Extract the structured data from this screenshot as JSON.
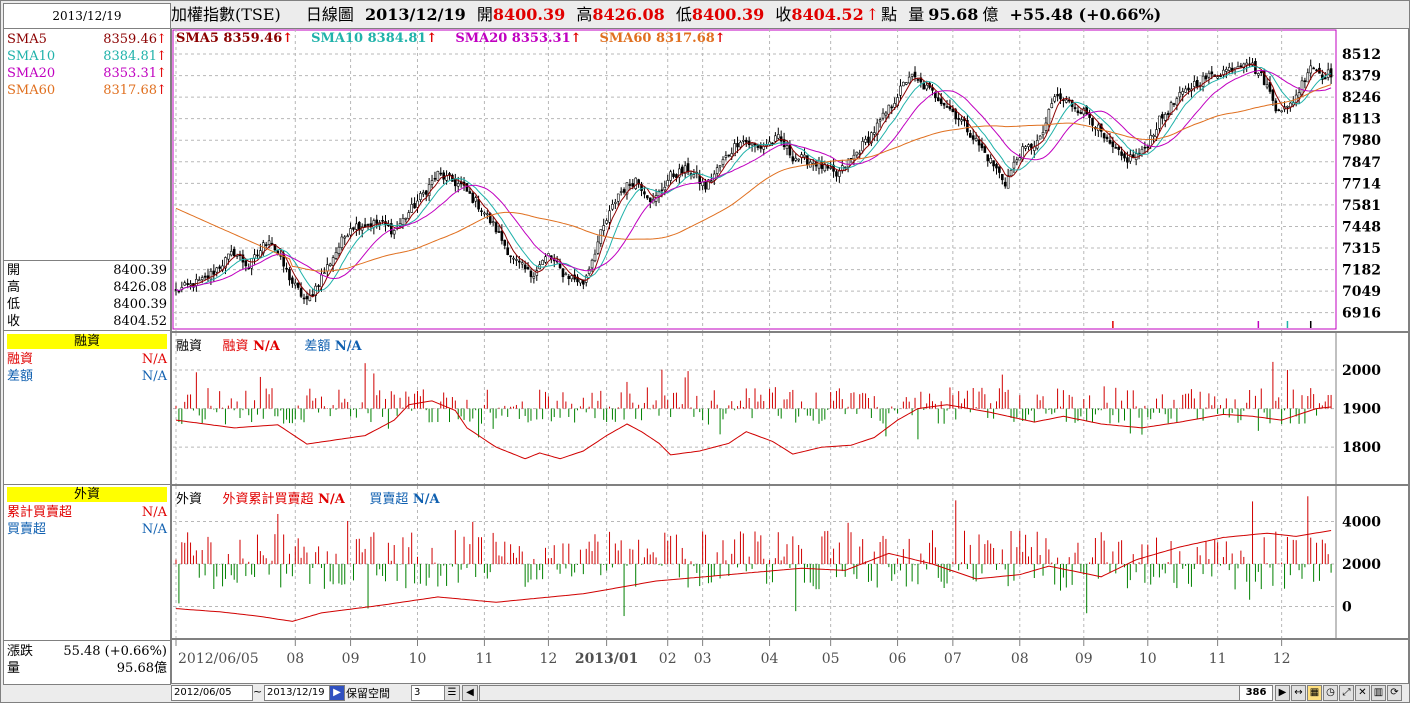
{
  "left_panel": {
    "date": "2013/12/19",
    "sma_rows": [
      {
        "label": "SMA5",
        "value": "8359.46",
        "color": "#8b0000"
      },
      {
        "label": "SMA10",
        "value": "8384.81",
        "color": "#20b2aa"
      },
      {
        "label": "SMA20",
        "value": "8353.31",
        "color": "#c000c0"
      },
      {
        "label": "SMA60",
        "value": "8317.68",
        "color": "#e07020"
      }
    ],
    "ohlc": [
      {
        "label": "開",
        "value": "8400.39"
      },
      {
        "label": "高",
        "value": "8426.08"
      },
      {
        "label": "低",
        "value": "8400.39"
      },
      {
        "label": "收",
        "value": "8404.52"
      }
    ],
    "margin_title": "融資",
    "margin_rows": [
      {
        "label": "融資",
        "value": "N/A",
        "color": "#e00000"
      },
      {
        "label": "差額",
        "value": "N/A",
        "color": "#1060b0"
      }
    ],
    "foreign_title": "外資",
    "foreign_rows": [
      {
        "label": "累計買賣超",
        "value": "N/A",
        "color": "#e00000"
      },
      {
        "label": "買賣超",
        "value": "N/A",
        "color": "#1060b0"
      }
    ],
    "change_label": "漲跌",
    "change_value": "55.48 (+0.66%)",
    "volume_label": "量",
    "volume_value": "95.68億"
  },
  "header": {
    "index_name": "加權指數(TSE)",
    "chart_kind": "日線圖",
    "date": "2013/12/19",
    "open_label": "開",
    "open": "8400.39",
    "high_label": "高",
    "high": "8426.08",
    "low_label": "低",
    "low": "8400.39",
    "close_label": "收",
    "close": "8404.52",
    "point_label": "點",
    "volume_label": "量",
    "volume": "95.68",
    "volume_unit": "億",
    "change": "+55.48 (+0.66%)"
  },
  "price_legend": [
    {
      "label": "SMA5",
      "value": "8359.46",
      "color": "#8b0000"
    },
    {
      "label": "SMA10",
      "value": "8384.81",
      "color": "#20b2aa"
    },
    {
      "label": "SMA20",
      "value": "8353.31",
      "color": "#c000c0"
    },
    {
      "label": "SMA60",
      "value": "8317.68",
      "color": "#e07020"
    }
  ],
  "margin_legend": {
    "title": "融資",
    "a_label": "融資",
    "a_value": "N/A",
    "b_label": "差額",
    "b_value": "N/A"
  },
  "foreign_legend": {
    "title": "外資",
    "a_label": "外資累計買賣超",
    "a_value": "N/A",
    "b_label": "買賣超",
    "b_value": "N/A"
  },
  "toolbar": {
    "start_date": "2012/06/05",
    "tilde": "~",
    "end_date": "2013/12/19",
    "reserve_label": "保留空間",
    "reserve_value": "3",
    "bar_count": "386"
  },
  "chart_data": [
    {
      "type": "candlestick",
      "name": "price",
      "y_ticks": [
        8512,
        8379,
        8246,
        8113,
        7980,
        7847,
        7714,
        7581,
        7448,
        7315,
        7182,
        7049,
        6916
      ],
      "ylim": [
        6840,
        8580
      ],
      "x_labels": [
        "2012/06/05",
        "08",
        "09",
        "10",
        "11",
        "12",
        "2013/01",
        "02",
        "03",
        "04",
        "05",
        "06",
        "07",
        "08",
        "09",
        "10",
        "11",
        "12"
      ],
      "x_label_positions": [
        0,
        41,
        60,
        83,
        106,
        128,
        148,
        169,
        181,
        204,
        225,
        248,
        267,
        290,
        312,
        334,
        358,
        380
      ],
      "bar_count": 386,
      "close_anchors": [
        [
          0,
          7050
        ],
        [
          10,
          7120
        ],
        [
          20,
          7290
        ],
        [
          25,
          7200
        ],
        [
          32,
          7380
        ],
        [
          40,
          7100
        ],
        [
          45,
          6980
        ],
        [
          52,
          7200
        ],
        [
          60,
          7450
        ],
        [
          70,
          7470
        ],
        [
          75,
          7420
        ],
        [
          82,
          7580
        ],
        [
          90,
          7770
        ],
        [
          98,
          7700
        ],
        [
          105,
          7560
        ],
        [
          110,
          7430
        ],
        [
          116,
          7240
        ],
        [
          122,
          7150
        ],
        [
          128,
          7270
        ],
        [
          133,
          7160
        ],
        [
          140,
          7100
        ],
        [
          146,
          7400
        ],
        [
          152,
          7650
        ],
        [
          158,
          7740
        ],
        [
          164,
          7600
        ],
        [
          170,
          7760
        ],
        [
          176,
          7800
        ],
        [
          182,
          7690
        ],
        [
          188,
          7850
        ],
        [
          194,
          7990
        ],
        [
          200,
          7930
        ],
        [
          207,
          7990
        ],
        [
          212,
          7880
        ],
        [
          220,
          7840
        ],
        [
          227,
          7760
        ],
        [
          233,
          7880
        ],
        [
          240,
          8040
        ],
        [
          246,
          8200
        ],
        [
          252,
          8380
        ],
        [
          258,
          8300
        ],
        [
          263,
          8230
        ],
        [
          270,
          8100
        ],
        [
          276,
          7950
        ],
        [
          282,
          7800
        ],
        [
          285,
          7720
        ],
        [
          290,
          7900
        ],
        [
          297,
          7980
        ],
        [
          302,
          8250
        ],
        [
          308,
          8200
        ],
        [
          314,
          8130
        ],
        [
          320,
          7960
        ],
        [
          326,
          7860
        ],
        [
          332,
          7900
        ],
        [
          338,
          8100
        ],
        [
          344,
          8230
        ],
        [
          350,
          8330
        ],
        [
          356,
          8380
        ],
        [
          362,
          8420
        ],
        [
          368,
          8480
        ],
        [
          374,
          8350
        ],
        [
          378,
          8190
        ],
        [
          382,
          8170
        ],
        [
          386,
          8290
        ],
        [
          390,
          8450
        ],
        [
          394,
          8380
        ],
        [
          398,
          8400
        ]
      ],
      "last_close": 8404.52
    },
    {
      "type": "bar_line",
      "name": "margin",
      "y_ticks": [
        2000,
        1900,
        1800
      ],
      "ylim": [
        1720,
        2070
      ]
    },
    {
      "type": "bar_line",
      "name": "foreign",
      "y_ticks": [
        4000,
        2000,
        0
      ],
      "ylim": [
        -1200,
        5200
      ]
    }
  ]
}
